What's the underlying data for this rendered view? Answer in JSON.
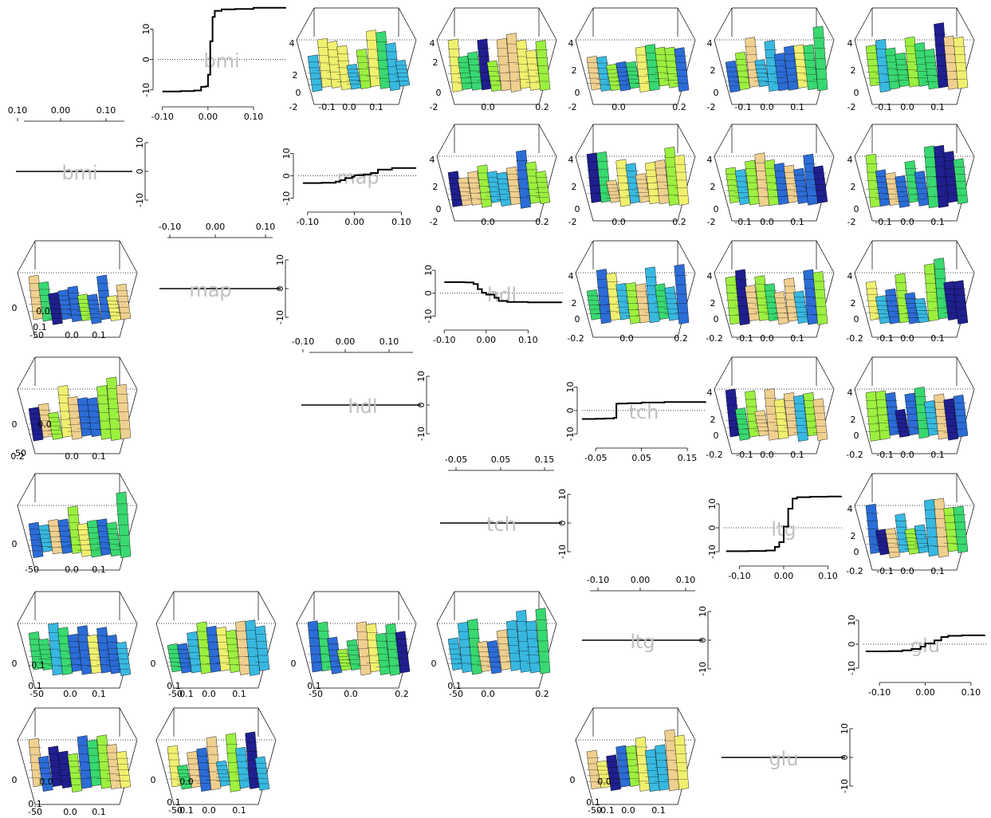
{
  "chart_data": {
    "type": "scatterplot-matrix",
    "variables": [
      "bmi",
      "map",
      "hdl",
      "tch",
      "ltg",
      "glu"
    ],
    "colors": {
      "curve": "#000000",
      "label": "#c0c0c0",
      "zero_line": "#000000",
      "surface_palette": [
        "#1f1f8f",
        "#2c6cd6",
        "#38b8e0",
        "#39d870",
        "#9cf040",
        "#f0f070",
        "#f0d090"
      ]
    },
    "effect_curves": [
      {
        "variable": "bmi",
        "x_ticks": [
          "-0.10",
          "0.00",
          "0.10"
        ],
        "y_ticks": [
          "10",
          "0",
          "-10"
        ],
        "x": [
          -0.1,
          -0.06,
          -0.03,
          -0.015,
          -0.005,
          0.0,
          0.005,
          0.01,
          0.015,
          0.03,
          0.06,
          0.1,
          0.17
        ],
        "y": [
          -10.5,
          -10.4,
          -10.2,
          -9.0,
          -8.8,
          -5.0,
          6.0,
          14.0,
          16.0,
          16.5,
          16.6,
          17.0,
          17.2
        ]
      },
      {
        "variable": "map",
        "x_ticks": [
          "-0.10",
          "0.00",
          "0.10"
        ],
        "y_ticks": [
          "10",
          "0",
          "-10"
        ],
        "x": [
          -0.11,
          -0.07,
          -0.04,
          -0.03,
          -0.02,
          -0.005,
          0.0,
          0.02,
          0.035,
          0.05,
          0.08,
          0.13
        ],
        "y": [
          -3.2,
          -3.1,
          -2.5,
          -1.9,
          -1.0,
          -0.4,
          0.3,
          0.7,
          1.3,
          2.8,
          3.5,
          3.8
        ]
      },
      {
        "variable": "hdl",
        "x_ticks": [
          "-0.10",
          "0.00",
          "0.10"
        ],
        "y_ticks": [
          "10",
          "0",
          "-10"
        ],
        "x": [
          -0.1,
          -0.05,
          -0.03,
          -0.02,
          -0.01,
          0.0,
          0.02,
          0.03,
          0.05,
          0.1,
          0.18
        ],
        "y": [
          4.8,
          4.7,
          4.0,
          1.8,
          0.2,
          -0.6,
          -2.0,
          -3.4,
          -3.8,
          -4.0,
          -4.1
        ]
      },
      {
        "variable": "tch",
        "x_ticks": [
          "-0.05",
          "0.05",
          "0.15"
        ],
        "y_ticks": [
          "10",
          "0",
          "-10"
        ],
        "x": [
          -0.08,
          -0.05,
          -0.03,
          -0.01,
          -0.005,
          0.0,
          0.02,
          0.05,
          0.1,
          0.19
        ],
        "y": [
          -3.6,
          -3.5,
          -3.4,
          -3.1,
          2.9,
          3.0,
          3.1,
          3.4,
          3.6,
          3.8
        ]
      },
      {
        "variable": "ltg",
        "x_ticks": [
          "-0.10",
          "0.00",
          "0.10"
        ],
        "y_ticks": [
          "10",
          "0",
          "-10"
        ],
        "x": [
          -0.13,
          -0.08,
          -0.04,
          -0.02,
          -0.01,
          0.0,
          0.01,
          0.02,
          0.03,
          0.06,
          0.1,
          0.13
        ],
        "y": [
          -9.8,
          -9.7,
          -9.5,
          -8.0,
          -6.0,
          0.5,
          8.0,
          12.2,
          12.8,
          13.0,
          13.1,
          13.2
        ]
      },
      {
        "variable": "glu",
        "x_ticks": [
          "-0.10",
          "0.00",
          "0.10"
        ],
        "y_ticks": [
          "10",
          "0",
          "-10"
        ],
        "x": [
          -0.13,
          -0.08,
          -0.05,
          -0.03,
          -0.01,
          0.0,
          0.02,
          0.035,
          0.05,
          0.08,
          0.13
        ],
        "y": [
          -3.0,
          -2.9,
          -2.6,
          -2.0,
          -1.0,
          0.3,
          1.6,
          3.0,
          3.5,
          3.7,
          3.8
        ]
      }
    ]
  }
}
